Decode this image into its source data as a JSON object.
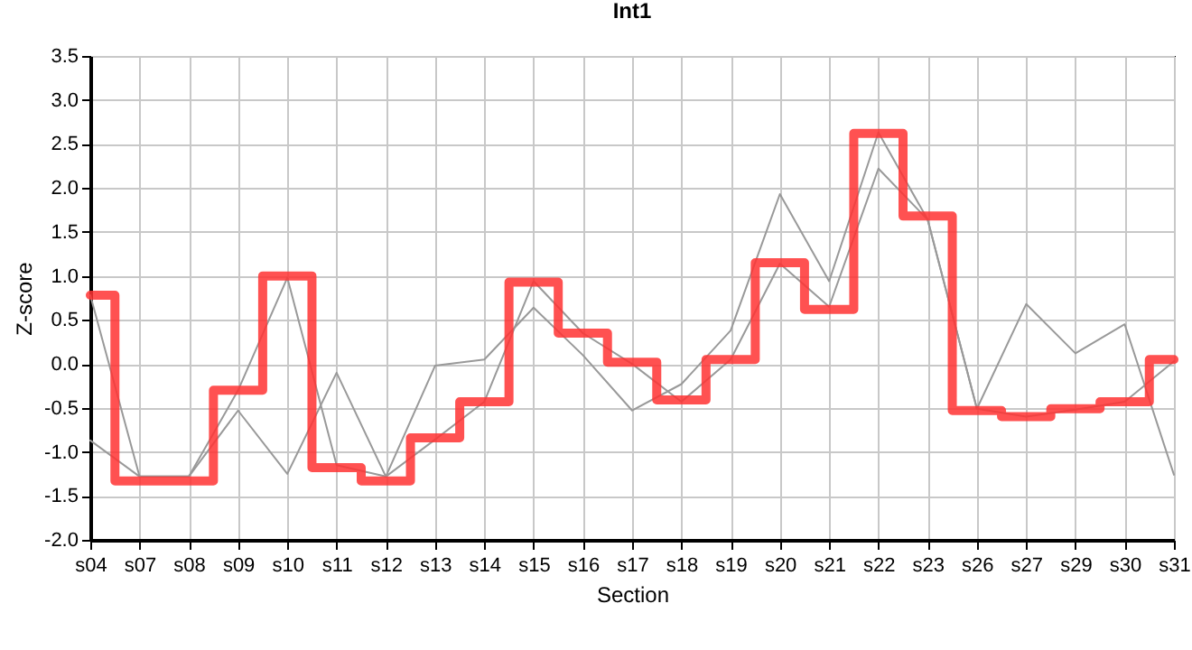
{
  "chart_data": {
    "type": "line",
    "title": "Int1",
    "xlabel": "Section",
    "ylabel": "Z-score",
    "categories": [
      "s04",
      "s07",
      "s08",
      "s09",
      "s10",
      "s11",
      "s12",
      "s13",
      "s14",
      "s15",
      "s16",
      "s17",
      "s18",
      "s19",
      "s20",
      "s21",
      "s22",
      "s23",
      "s26",
      "s27",
      "s29",
      "s30",
      "s31"
    ],
    "series": [
      {
        "color": "#999999",
        "values": [
          0.78,
          -1.28,
          -1.28,
          -0.3,
          0.98,
          -1.15,
          -1.28,
          -0.86,
          -0.43,
          0.94,
          0.35,
          0.0,
          -0.43,
          0.05,
          1.14,
          0.65,
          2.22,
          1.64,
          -0.51,
          -0.6,
          -0.52,
          -0.43,
          0.03
        ]
      },
      {
        "color": "#999999",
        "values": [
          -0.87,
          -1.28,
          -1.28,
          -0.53,
          -1.25,
          -0.1,
          -1.28,
          -0.02,
          0.05,
          0.64,
          0.1,
          -0.53,
          -0.23,
          0.38,
          1.93,
          0.94,
          2.63,
          1.64,
          -0.51,
          0.68,
          0.12,
          0.45,
          -1.26
        ]
      },
      {
        "type": "step",
        "color": "#ff3333",
        "values": [
          0.78,
          -1.33,
          -1.33,
          -0.3,
          1.0,
          -1.18,
          -1.33,
          -0.84,
          -0.43,
          0.93,
          0.35,
          0.02,
          -0.41,
          0.05,
          1.15,
          0.62,
          2.62,
          1.68,
          -0.53,
          -0.6,
          -0.51,
          -0.43,
          0.05
        ]
      }
    ],
    "ylim": [
      -2,
      3.5
    ],
    "yticks": [
      {
        "value": -2,
        "label": "-2.0"
      },
      -1.5,
      {
        "value": -1,
        "label": "-1.0"
      },
      -0.5,
      {
        "value": 0,
        "label": "0.0"
      },
      0.5,
      {
        "value": 1,
        "label": "1.0"
      },
      1.5,
      {
        "value": 2,
        "label": "2.0"
      },
      2.5,
      {
        "value": 3,
        "label": "3.0"
      },
      3.5
    ],
    "grid": true,
    "line_style": "solid",
    "marker": "none"
  }
}
